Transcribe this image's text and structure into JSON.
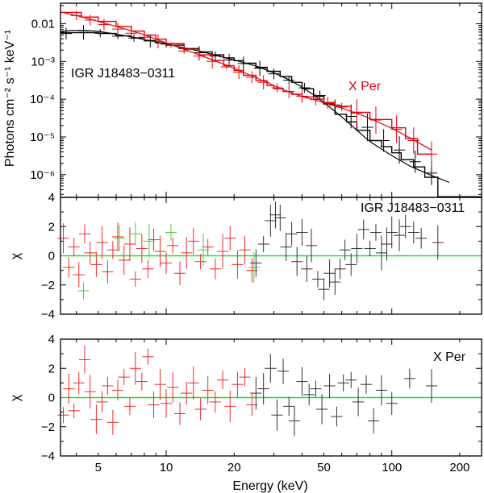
{
  "chart_data": [
    {
      "type": "scatter",
      "panel": "spectrum",
      "xscale": "log",
      "yscale": "log",
      "xlim": [
        3.4,
        250
      ],
      "ylim": [
        2.5e-07,
        0.035
      ],
      "ylabel": "Photons cm⁻² s⁻¹ keV⁻¹",
      "yticks": [
        1e-06,
        1e-05,
        0.0001,
        0.001,
        0.01
      ],
      "yticklabels": [
        "10⁻⁶",
        "10⁻⁵",
        "10⁻⁴",
        "10⁻³",
        "0.01"
      ],
      "annotations": [
        {
          "text": "IGR J18483−0311",
          "color": "#000000"
        },
        {
          "text": "X Per",
          "color": "#e8000b"
        }
      ],
      "series": [
        {
          "name": "IGR J18483−0311",
          "color": "#000000",
          "step_x": [
            3.4,
            4.2,
            5,
            6,
            7,
            8,
            9,
            10,
            12,
            14,
            16,
            18,
            20,
            22,
            25,
            28,
            32,
            36,
            40,
            45,
            50,
            56,
            63,
            70,
            80,
            90,
            100,
            110,
            125,
            140,
            160,
            250
          ],
          "step_y": [
            0.0058,
            0.0058,
            0.0055,
            0.0048,
            0.0042,
            0.0036,
            0.0031,
            0.0027,
            0.0022,
            0.0018,
            0.0015,
            0.00125,
            0.00105,
            0.0009,
            0.0007,
            0.00055,
            0.0004,
            0.00028,
            0.00019,
            0.00012,
            7.5e-05,
            4e-05,
            2.5e-05,
            1.5e-05,
            8e-06,
            5.5e-06,
            3.8e-06,
            2.5e-06,
            1.6e-06,
            8.5e-07,
            2.6e-07
          ],
          "x": [
            3.6,
            4.3,
            5.1,
            6.1,
            7.2,
            8.5,
            10,
            12,
            14,
            16.5,
            19,
            22,
            26,
            30,
            35,
            41,
            48,
            56,
            66,
            78,
            92,
            108,
            127,
            150
          ],
          "y": [
            0.0055,
            0.0059,
            0.0056,
            0.0047,
            0.0042,
            0.0035,
            0.0029,
            0.0022,
            0.0017,
            0.0014,
            0.0011,
            0.00088,
            0.00066,
            0.00047,
            0.00032,
            0.0002,
            0.000125,
            7e-05,
            3.5e-05,
            1.8e-05,
            8e-06,
            4.5e-06,
            2.2e-06,
            1.1e-06
          ]
        },
        {
          "name": "IGR J18483−0311 model",
          "color": "#000000",
          "x": [
            3.4,
            3.8,
            4.3,
            5,
            6,
            7,
            8,
            10,
            12,
            14,
            17,
            20,
            25,
            30,
            35,
            40,
            45,
            50,
            60,
            70,
            80,
            100,
            120,
            150,
            180
          ],
          "y": [
            0.0062,
            0.0066,
            0.0067,
            0.0063,
            0.0053,
            0.0045,
            0.0038,
            0.0029,
            0.0023,
            0.0019,
            0.0014,
            0.0011,
            0.00076,
            0.0005,
            0.00033,
            0.00021,
            0.00013,
            8.2e-05,
            3.4e-05,
            1.5e-05,
            7.5e-06,
            3.2e-06,
            1.7e-06,
            9.5e-07,
            6.2e-07
          ]
        },
        {
          "name": "X Per",
          "color": "#e8000b",
          "step_x": [
            3.4,
            4.2,
            5,
            6,
            7,
            8,
            9,
            10,
            12,
            14,
            16,
            18,
            20,
            22,
            25,
            28,
            30,
            33,
            36,
            40,
            45,
            50,
            56,
            66,
            80,
            100,
            115,
            130,
            150
          ],
          "step_y": [
            0.02,
            0.015,
            0.0115,
            0.0085,
            0.0064,
            0.005,
            0.0039,
            0.003,
            0.0021,
            0.0015,
            0.00107,
            0.00078,
            0.00058,
            0.00043,
            0.00031,
            0.00023,
            0.00019,
            0.00016,
            0.000135,
            0.000115,
            0.0001,
            8.2e-05,
            6.5e-05,
            4.5e-05,
            2.9e-05,
            1.75e-05,
            9e-06,
            3.5e-06
          ],
          "x": [
            4,
            4.6,
            5.3,
            6.1,
            7,
            8,
            9.2,
            10.5,
            12,
            14,
            16,
            18.5,
            21,
            24,
            27,
            31,
            35,
            40,
            46,
            52,
            60,
            70,
            85,
            105,
            125,
            150
          ],
          "y": [
            0.0165,
            0.0125,
            0.0095,
            0.0072,
            0.0056,
            0.0044,
            0.0034,
            0.0027,
            0.0019,
            0.0014,
            0.001,
            0.00072,
            0.00052,
            0.00038,
            0.00028,
            0.0002,
            0.00016,
            0.00012,
            9.8e-05,
            8e-05,
            6.2e-05,
            4.3e-05,
            2.8e-05,
            1.6e-05,
            8e-06,
            3.5e-06
          ]
        },
        {
          "name": "X Per model",
          "color": "#e8000b",
          "x": [
            3.4,
            4,
            5,
            6,
            7,
            8,
            10,
            12,
            14,
            17,
            20,
            25,
            30,
            35,
            40,
            45,
            50,
            60,
            70,
            80,
            100,
            120,
            150
          ],
          "y": [
            0.0205,
            0.0165,
            0.0115,
            0.0085,
            0.0065,
            0.0051,
            0.0031,
            0.0021,
            0.0015,
            0.00096,
            0.00066,
            0.00037,
            0.00023,
            0.000155,
            0.000118,
            9.8e-05,
            8.2e-05,
            5.8e-05,
            4.2e-05,
            3.1e-05,
            1.7e-05,
            9.5e-06,
            4.5e-06
          ]
        }
      ]
    },
    {
      "type": "scatter",
      "panel": "residuals",
      "xscale": "log",
      "xlim": [
        3.4,
        250
      ],
      "ylim": [
        -4,
        4
      ],
      "ylabel": "χ",
      "yticks": [
        -4,
        -2,
        0,
        2,
        4
      ],
      "yticklabels": [
        "−4",
        "−2",
        "0",
        "2",
        "4"
      ],
      "annotations": [
        {
          "text": "IGR J18483−0311",
          "color": "#000000"
        }
      ],
      "reference_line": {
        "y": 0,
        "color": "#2edc2e"
      },
      "series": [
        {
          "name": "red",
          "color": "#f02a2a",
          "x": [
            3.5,
            3.7,
            3.9,
            4.1,
            4.35,
            4.6,
            4.9,
            5.2,
            5.5,
            5.8,
            6.1,
            6.5,
            6.9,
            7.3,
            7.8,
            8.3,
            8.8,
            9.4,
            10,
            10.7,
            11.5,
            12.3,
            13.2,
            14.2,
            15.3,
            16.5,
            17.8,
            19.2,
            20.7,
            22.3,
            24
          ],
          "y": [
            1.2,
            -0.8,
            0.6,
            -1.3,
            1.5,
            0.2,
            -0.6,
            0.9,
            -1.1,
            0.4,
            1.3,
            -0.3,
            0.8,
            -1.6,
            0.5,
            -0.9,
            1.1,
            0.3,
            -0.5,
            0.7,
            -1.2,
            0.2,
            1.0,
            -0.4,
            0.6,
            -0.9,
            0.3,
            1.2,
            -0.6,
            0.4,
            -1.0
          ]
        },
        {
          "name": "green",
          "color": "#4ec94e",
          "x": [
            4.3,
            6.2,
            7.3,
            8.4,
            10.5,
            14.6,
            24.5
          ],
          "y": [
            -2.4,
            1.2,
            1.5,
            1.0,
            1.6,
            0.4,
            -0.8
          ]
        },
        {
          "name": "black",
          "color": "#333333",
          "x": [
            25,
            27,
            29,
            30.5,
            32,
            34,
            36,
            38,
            40,
            42,
            44,
            47,
            50,
            53,
            56,
            59,
            62,
            66,
            70,
            75,
            80,
            85,
            90,
            95,
            100,
            108,
            115,
            125,
            135,
            160
          ],
          "y": [
            -0.5,
            0.8,
            2.4,
            2.8,
            2.6,
            0.6,
            1.5,
            -0.4,
            1.6,
            -0.9,
            0.7,
            -1.6,
            -2.3,
            -1.2,
            -1.8,
            -0.9,
            0.4,
            -0.6,
            0.5,
            1.8,
            0.5,
            1.6,
            0.2,
            0.8,
            1.6,
            1.4,
            2.0,
            1.6,
            1.2,
            0.9
          ]
        }
      ]
    },
    {
      "type": "scatter",
      "panel": "residuals",
      "xscale": "log",
      "xlim": [
        3.4,
        250
      ],
      "ylim": [
        -4,
        4
      ],
      "xlabel": "Energy (keV)",
      "xticks": [
        5,
        10,
        20,
        50,
        100,
        200
      ],
      "xticklabels": [
        "5",
        "10",
        "20",
        "50",
        "100",
        "200"
      ],
      "ylabel": "χ",
      "yticks": [
        -4,
        -2,
        0,
        2,
        4
      ],
      "yticklabels": [
        "−4",
        "−2",
        "0",
        "2",
        "4"
      ],
      "annotations": [
        {
          "text": "X Per",
          "color": "#000000"
        }
      ],
      "reference_line": {
        "y": 0,
        "color": "#2edc2e"
      },
      "series": [
        {
          "name": "red",
          "color": "#f02a2a",
          "x": [
            3.5,
            3.7,
            3.9,
            4.1,
            4.35,
            4.6,
            4.9,
            5.2,
            5.5,
            5.8,
            6.1,
            6.5,
            6.9,
            7.3,
            7.8,
            8.3,
            8.8,
            9.4,
            10,
            10.7,
            11.5,
            12.3,
            13.2,
            14.2,
            15.3,
            16.5,
            17.8,
            19.2,
            20.7,
            22.3,
            24
          ],
          "y": [
            -1.2,
            0.6,
            -0.9,
            1.0,
            2.6,
            0.4,
            -1.5,
            -0.3,
            0.8,
            -1.7,
            0.5,
            1.4,
            -0.6,
            2.0,
            1.1,
            2.8,
            -0.5,
            0.9,
            -0.4,
            0.7,
            -1.1,
            0.3,
            1.0,
            -0.8,
            0.5,
            -0.3,
            1.2,
            -0.6,
            0.9,
            1.4,
            -0.5
          ]
        },
        {
          "name": "black",
          "color": "#333333",
          "x": [
            25,
            27,
            29,
            31,
            33,
            35,
            37,
            40,
            43,
            46,
            49,
            53,
            57,
            61,
            66,
            71,
            77,
            83,
            90,
            100,
            120,
            150
          ],
          "y": [
            0.3,
            0.6,
            2.0,
            -1.2,
            1.8,
            -0.6,
            -1.6,
            1.1,
            0.2,
            0.6,
            -0.8,
            0.8,
            -1.3,
            1.0,
            1.2,
            -0.3,
            0.9,
            -1.6,
            0.5,
            -0.4,
            1.3,
            0.8
          ]
        }
      ]
    }
  ]
}
